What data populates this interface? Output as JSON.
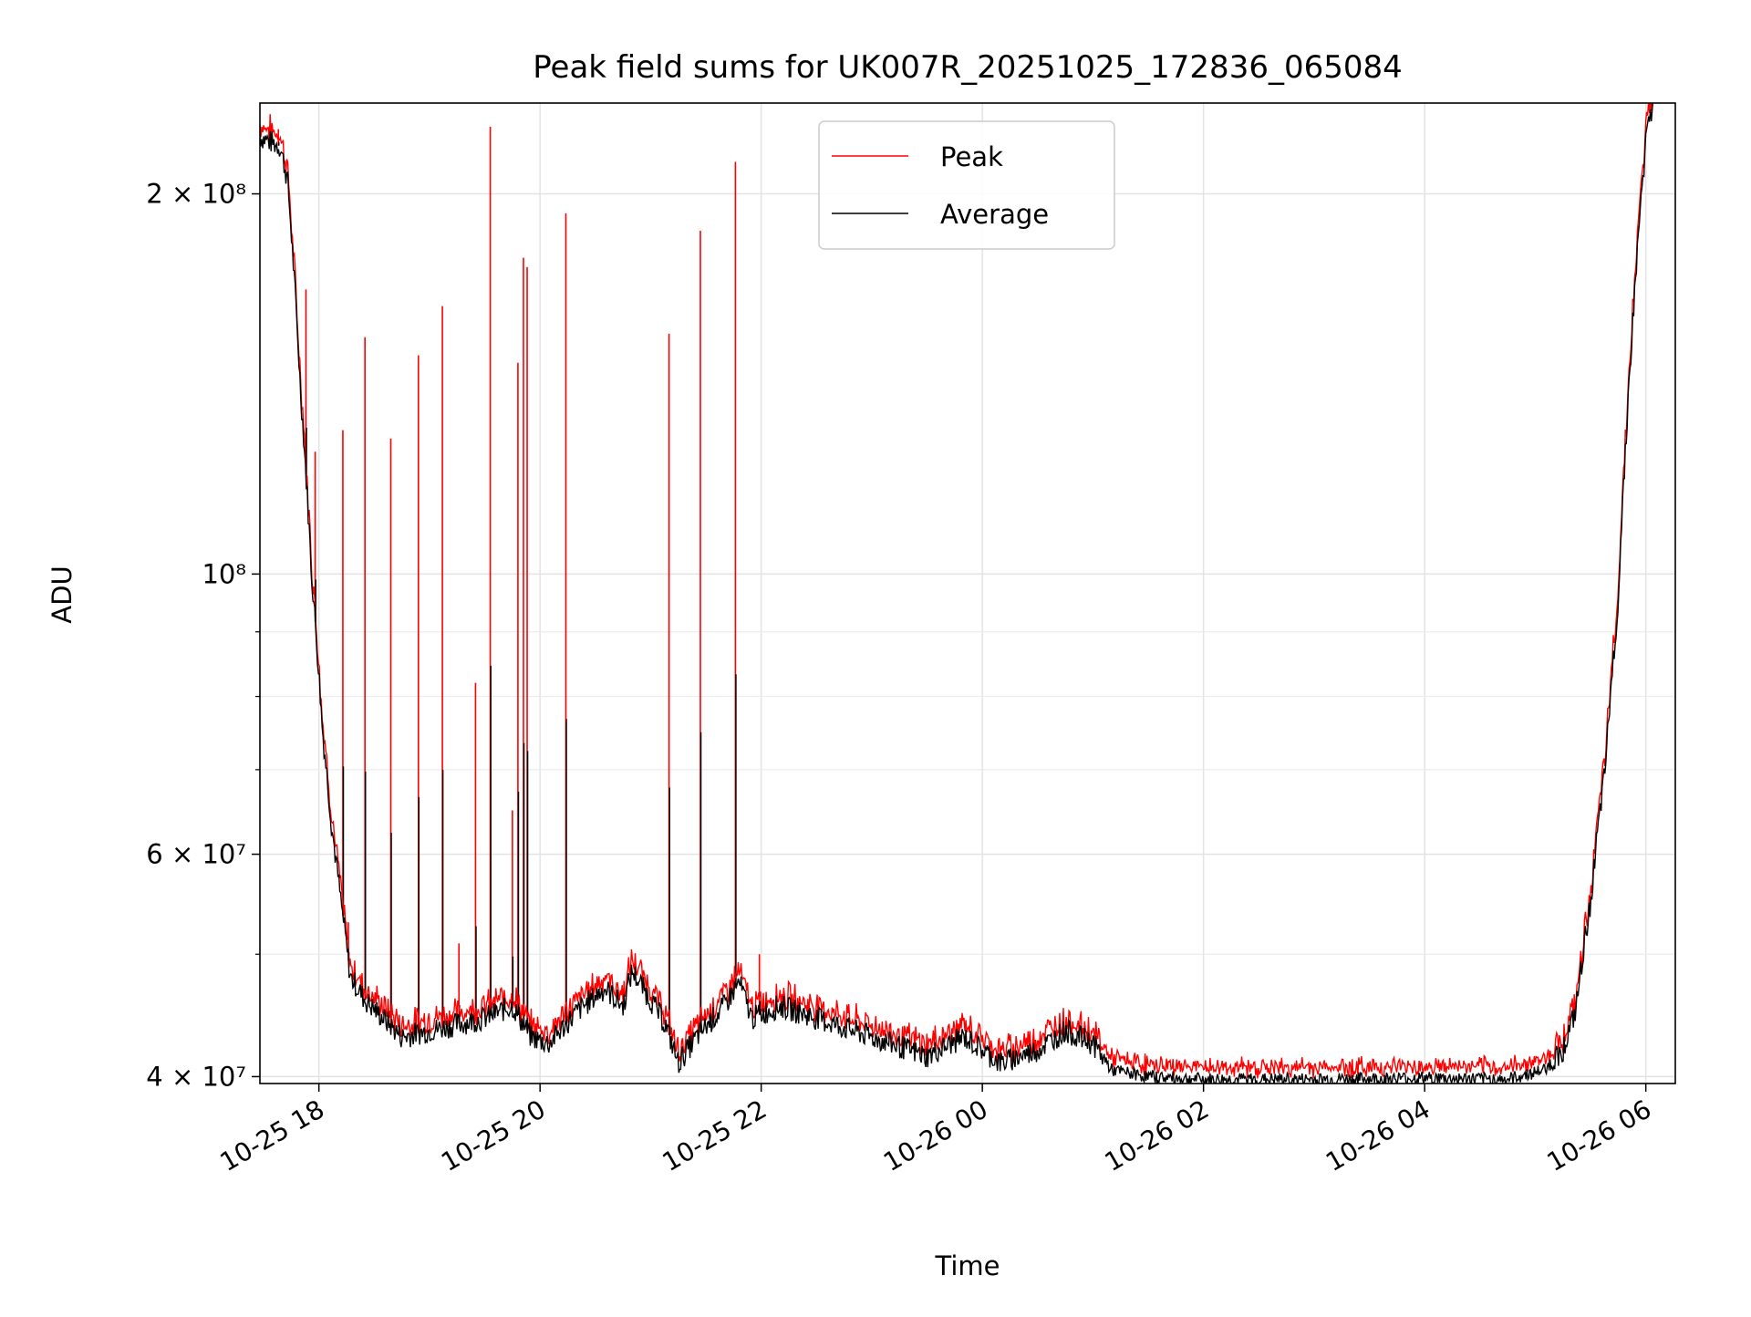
{
  "chart_data": {
    "type": "line",
    "title": "Peak field sums for UK007R_20251025_172836_065084",
    "xlabel": "Time",
    "ylabel": "ADU",
    "y_scale": "log",
    "ylim": [
      39500000,
      236000000
    ],
    "xlim": [
      "2025-10-25 17:28",
      "2025-10-26 06:16"
    ],
    "grid": true,
    "legend": {
      "location": "upper center"
    },
    "x_ticks": [
      {
        "value": "2025-10-25 18:00",
        "label": "10-25 18"
      },
      {
        "value": "2025-10-25 20:00",
        "label": "10-25 20"
      },
      {
        "value": "2025-10-25 22:00",
        "label": "10-25 22"
      },
      {
        "value": "2025-10-26 00:00",
        "label": "10-26 00"
      },
      {
        "value": "2025-10-26 02:00",
        "label": "10-26 02"
      },
      {
        "value": "2025-10-26 04:00",
        "label": "10-26 04"
      },
      {
        "value": "2025-10-26 06:00",
        "label": "10-26 06"
      }
    ],
    "y_ticks": [
      {
        "value": 40000000,
        "label": "4 × 10⁷"
      },
      {
        "value": 60000000,
        "label": "6 × 10⁷"
      },
      {
        "value": 100000000,
        "label": "10⁸"
      },
      {
        "value": 200000000,
        "label": "2 × 10⁸"
      }
    ],
    "y_minor_ticks": [
      50000000,
      70000000,
      80000000,
      90000000
    ],
    "series": [
      {
        "name": "Average",
        "color": "#000000",
        "points": [
          [
            "2025-10-25 17:28",
            222000000
          ],
          [
            "2025-10-25 17:39",
            218000000
          ],
          [
            "2025-10-25 17:43",
            205000000
          ],
          [
            "2025-10-25 17:50",
            140000000
          ],
          [
            "2025-10-25 17:56",
            100000000
          ],
          [
            "2025-10-25 18:02",
            75000000
          ],
          [
            "2025-10-25 18:07",
            63000000
          ],
          [
            "2025-10-25 18:12",
            55000000
          ],
          [
            "2025-10-25 18:17",
            48000000
          ],
          [
            "2025-10-25 18:25",
            46000000
          ],
          [
            "2025-10-25 18:35",
            44500000
          ],
          [
            "2025-10-25 18:45",
            43000000
          ],
          [
            "2025-10-25 19:00",
            43500000
          ],
          [
            "2025-10-25 19:15",
            44000000
          ],
          [
            "2025-10-25 19:30",
            44500000
          ],
          [
            "2025-10-25 19:45",
            45500000
          ],
          [
            "2025-10-25 19:55",
            43000000
          ],
          [
            "2025-10-25 20:05",
            42500000
          ],
          [
            "2025-10-25 20:20",
            45000000
          ],
          [
            "2025-10-25 20:35",
            47000000
          ],
          [
            "2025-10-25 20:45",
            45500000
          ],
          [
            "2025-10-25 20:50",
            48500000
          ],
          [
            "2025-10-25 21:00",
            46000000
          ],
          [
            "2025-10-25 21:08",
            44000000
          ],
          [
            "2025-10-25 21:15",
            41000000
          ],
          [
            "2025-10-25 21:25",
            43000000
          ],
          [
            "2025-10-25 21:40",
            45500000
          ],
          [
            "2025-10-25 21:48",
            47500000
          ],
          [
            "2025-10-25 21:55",
            44500000
          ],
          [
            "2025-10-25 22:10",
            45500000
          ],
          [
            "2025-10-25 22:30",
            44500000
          ],
          [
            "2025-10-25 22:50",
            43500000
          ],
          [
            "2025-10-25 23:10",
            42500000
          ],
          [
            "2025-10-25 23:30",
            41500000
          ],
          [
            "2025-10-25 23:50",
            43000000
          ],
          [
            "2025-10-26 00:10",
            41000000
          ],
          [
            "2025-10-26 00:30",
            42000000
          ],
          [
            "2025-10-26 00:45",
            43500000
          ],
          [
            "2025-10-26 01:00",
            42500000
          ],
          [
            "2025-10-26 01:10",
            40500000
          ],
          [
            "2025-10-26 01:30",
            40000000
          ],
          [
            "2025-10-26 02:00",
            39800000
          ],
          [
            "2025-10-26 03:00",
            39800000
          ],
          [
            "2025-10-26 04:00",
            39900000
          ],
          [
            "2025-10-26 04:45",
            39800000
          ],
          [
            "2025-10-26 05:05",
            40500000
          ],
          [
            "2025-10-26 05:15",
            42000000
          ],
          [
            "2025-10-26 05:22",
            45000000
          ],
          [
            "2025-10-26 05:30",
            55000000
          ],
          [
            "2025-10-26 05:38",
            70000000
          ],
          [
            "2025-10-26 05:45",
            95000000
          ],
          [
            "2025-10-26 05:52",
            150000000
          ],
          [
            "2025-10-26 06:00",
            220000000
          ],
          [
            "2025-10-26 06:04",
            236000000
          ]
        ]
      },
      {
        "name": "Peak",
        "color": "#ff0000",
        "spikes": [
          [
            "2025-10-25 17:38",
            225000000
          ],
          [
            "2025-10-25 17:53",
            168000000
          ],
          [
            "2025-10-25 17:58",
            125000000
          ],
          [
            "2025-10-25 18:13",
            130000000
          ],
          [
            "2025-10-25 18:16",
            53000000
          ],
          [
            "2025-10-25 18:25",
            154000000
          ],
          [
            "2025-10-25 18:39",
            128000000
          ],
          [
            "2025-10-25 18:54",
            149000000
          ],
          [
            "2025-10-25 19:07",
            163000000
          ],
          [
            "2025-10-25 19:16",
            51000000
          ],
          [
            "2025-10-25 19:25",
            82000000
          ],
          [
            "2025-10-25 19:33",
            226000000
          ],
          [
            "2025-10-25 19:45",
            65000000
          ],
          [
            "2025-10-25 19:48",
            147000000
          ],
          [
            "2025-10-25 19:51",
            178000000
          ],
          [
            "2025-10-25 19:53",
            175000000
          ],
          [
            "2025-10-25 20:14",
            193000000
          ],
          [
            "2025-10-25 21:10",
            155000000
          ],
          [
            "2025-10-25 21:27",
            187000000
          ],
          [
            "2025-10-25 21:46",
            212000000
          ],
          [
            "2025-10-25 21:59",
            50000000
          ]
        ]
      }
    ]
  }
}
